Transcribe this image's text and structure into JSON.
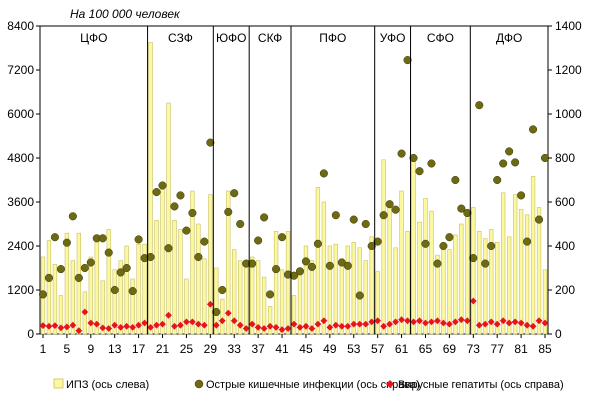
{
  "chart_data": {
    "type": "bar",
    "unit_label": "На 100 000 человек",
    "colors": {
      "bars": "#fcf8a0",
      "bar_stroke": "#c8c060",
      "circles": "#6e6a14",
      "diamonds": "#e8141c"
    },
    "y_left": {
      "min": 0,
      "max": 8400,
      "ticks": [
        "0",
        "1200",
        "2400",
        "3600",
        "4800",
        "6000",
        "7200",
        "8400"
      ]
    },
    "y_right": {
      "min": 0,
      "max": 1400,
      "ticks": [
        "0",
        "200",
        "400",
        "600",
        "800",
        "1000",
        "1200",
        "1400"
      ]
    },
    "x_ticks": [
      "1",
      "5",
      "9",
      "13",
      "17",
      "21",
      "25",
      "29",
      "33",
      "37",
      "41",
      "45",
      "49",
      "53",
      "57",
      "61",
      "65",
      "69",
      "73",
      "77",
      "81",
      "85"
    ],
    "x_tick_values": [
      1,
      5,
      9,
      13,
      17,
      21,
      25,
      29,
      33,
      37,
      41,
      45,
      49,
      53,
      57,
      61,
      65,
      69,
      73,
      77,
      81,
      85
    ],
    "districts": [
      {
        "label": "ЦФО",
        "start": 1,
        "end": 18
      },
      {
        "label": "СЗФ",
        "start": 19,
        "end": 29
      },
      {
        "label": "ЮФО",
        "start": 30,
        "end": 35
      },
      {
        "label": "СКФ",
        "start": 36,
        "end": 42
      },
      {
        "label": "ПФО",
        "start": 43,
        "end": 56
      },
      {
        "label": "УФО",
        "start": 57,
        "end": 62
      },
      {
        "label": "СФО",
        "start": 63,
        "end": 72
      },
      {
        "label": "ДФО",
        "start": 73,
        "end": 85
      }
    ],
    "series": [
      {
        "name": "ИПЗ (ось слева)",
        "axis": "left",
        "kind": "bar",
        "values": [
          2100,
          2550,
          1900,
          1050,
          2750,
          2000,
          2750,
          1150,
          2100,
          2550,
          1450,
          2850,
          1750,
          2000,
          2400,
          1500,
          2450,
          2450,
          7950,
          3100,
          4050,
          6300,
          3100,
          2850,
          1500,
          3900,
          3000,
          2050,
          3800,
          1800,
          950,
          3900,
          2300,
          2000,
          2000,
          2100,
          2000,
          1550,
          750,
          2800,
          1750,
          2800,
          1050,
          1650,
          2400,
          2000,
          4000,
          3600,
          2400,
          2450,
          2050,
          2400,
          2500,
          2350,
          2000,
          2650,
          1700,
          4750,
          3500,
          2350,
          3900,
          2800,
          4850,
          3050,
          3700,
          3350,
          2150,
          2350,
          2300,
          2700,
          3000,
          3200,
          3450,
          2800,
          2600,
          2850,
          2500,
          3850,
          2650,
          3800,
          3400,
          3250,
          4300,
          3450,
          1750
        ]
      },
      {
        "name": "Острые кишечные инфекции  (ось справа)",
        "axis": "right",
        "kind": "circle",
        "values": [
          180,
          255,
          440,
          295,
          415,
          535,
          255,
          300,
          325,
          435,
          435,
          370,
          200,
          280,
          300,
          195,
          430,
          345,
          350,
          645,
          675,
          390,
          580,
          630,
          470,
          550,
          350,
          420,
          870,
          100,
          200,
          555,
          640,
          500,
          320,
          320,
          425,
          530,
          180,
          295,
          440,
          270,
          265,
          285,
          330,
          305,
          410,
          730,
          310,
          540,
          325,
          310,
          520,
          175,
          500,
          400,
          420,
          540,
          590,
          565,
          820,
          1245,
          800,
          740,
          410,
          775,
          320,
          400,
          440,
          700,
          570,
          550,
          345,
          1040,
          320,
          400,
          700,
          775,
          830,
          780,
          630,
          420,
          930,
          520,
          800
        ]
      },
      {
        "name": "Вирусные гепатиты (ось справа)",
        "axis": "right",
        "kind": "diamond",
        "values": [
          38,
          35,
          38,
          28,
          32,
          40,
          15,
          100,
          50,
          45,
          28,
          25,
          40,
          30,
          35,
          30,
          40,
          50,
          30,
          40,
          45,
          85,
          35,
          40,
          55,
          55,
          45,
          40,
          135,
          40,
          60,
          95,
          60,
          40,
          25,
          45,
          30,
          25,
          35,
          30,
          20,
          25,
          45,
          30,
          35,
          25,
          45,
          60,
          30,
          40,
          35,
          35,
          45,
          45,
          45,
          55,
          60,
          35,
          45,
          55,
          65,
          60,
          55,
          60,
          50,
          55,
          60,
          50,
          45,
          55,
          65,
          60,
          150,
          40,
          45,
          55,
          45,
          60,
          50,
          55,
          50,
          40,
          35,
          60,
          50
        ]
      }
    ],
    "legend": {
      "placement": "bottom",
      "items": [
        "ИПЗ (ось слева)",
        "Острые кишечные инфекции  (ось справа)",
        "Вирусные гепатиты (ось справа)"
      ]
    }
  }
}
